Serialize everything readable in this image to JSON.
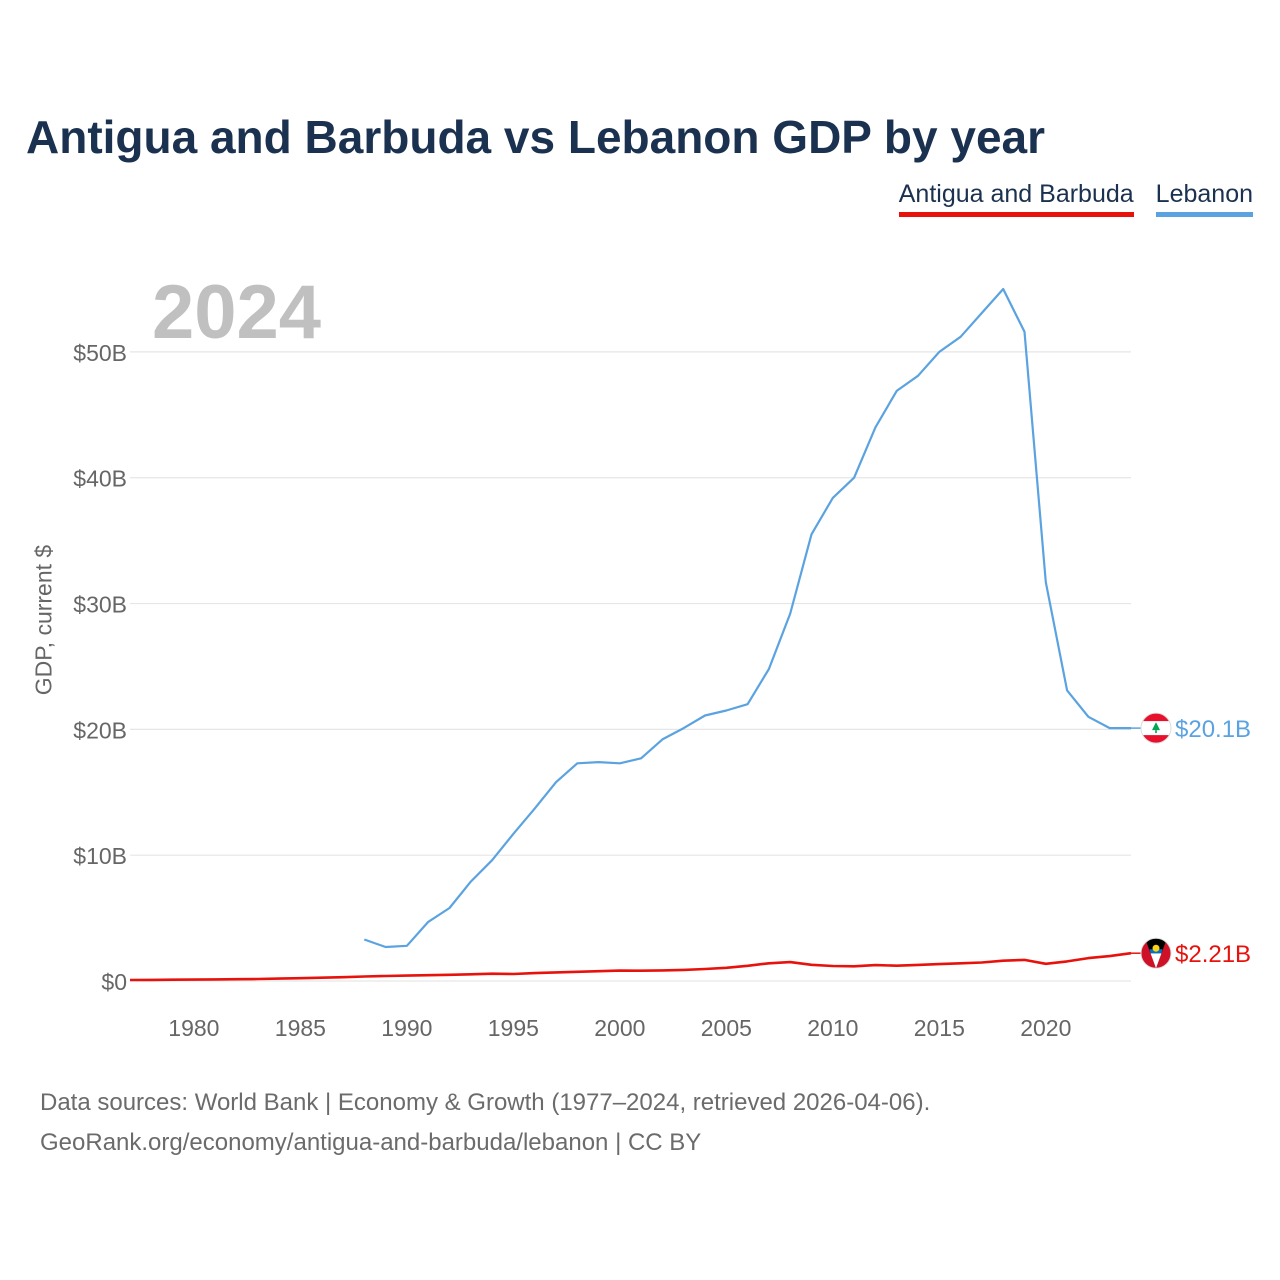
{
  "chart_data": {
    "type": "line",
    "title": "Antigua and Barbuda vs Lebanon GDP by year",
    "year_label": "2024",
    "ylabel": "GDP, current $",
    "xlim": [
      1977,
      2024
    ],
    "ylim": [
      0,
      55
    ],
    "y_unit": "billions USD",
    "yticks": [
      0,
      10,
      20,
      30,
      40,
      50
    ],
    "ytick_labels": [
      "$0",
      "$10B",
      "$20B",
      "$30B",
      "$40B",
      "$50B"
    ],
    "xticks": [
      1980,
      1985,
      1990,
      1995,
      2000,
      2005,
      2010,
      2015,
      2020
    ],
    "xtick_labels": [
      "1980",
      "1985",
      "1990",
      "1995",
      "2000",
      "2005",
      "2010",
      "2015",
      "2020"
    ],
    "grid": true,
    "legend_position": "top-right",
    "series": [
      {
        "name": "Antigua and Barbuda",
        "color": "#e8120c",
        "end_label": "$2.21B",
        "flag": "antigua-and-barbuda-flag",
        "x": [
          1977,
          1978,
          1979,
          1980,
          1981,
          1982,
          1983,
          1984,
          1985,
          1986,
          1987,
          1988,
          1989,
          1990,
          1991,
          1992,
          1993,
          1994,
          1995,
          1996,
          1997,
          1998,
          1999,
          2000,
          2001,
          2002,
          2003,
          2004,
          2005,
          2006,
          2007,
          2008,
          2009,
          2010,
          2011,
          2012,
          2013,
          2014,
          2015,
          2016,
          2017,
          2018,
          2019,
          2020,
          2021,
          2022,
          2023,
          2024
        ],
        "values": [
          0.08,
          0.09,
          0.1,
          0.11,
          0.13,
          0.14,
          0.16,
          0.19,
          0.22,
          0.26,
          0.3,
          0.36,
          0.4,
          0.43,
          0.46,
          0.49,
          0.53,
          0.58,
          0.56,
          0.63,
          0.68,
          0.73,
          0.78,
          0.83,
          0.82,
          0.84,
          0.88,
          0.95,
          1.05,
          1.21,
          1.41,
          1.5,
          1.29,
          1.19,
          1.17,
          1.26,
          1.22,
          1.28,
          1.34,
          1.41,
          1.47,
          1.61,
          1.68,
          1.37,
          1.56,
          1.82,
          1.98,
          2.21
        ]
      },
      {
        "name": "Lebanon",
        "color": "#5ba3e0",
        "end_label": "$20.1B",
        "flag": "lebanon-flag",
        "x": [
          1988,
          1989,
          1990,
          1991,
          1992,
          1993,
          1994,
          1995,
          1996,
          1997,
          1998,
          1999,
          2000,
          2001,
          2002,
          2003,
          2004,
          2005,
          2006,
          2007,
          2008,
          2009,
          2010,
          2011,
          2012,
          2013,
          2014,
          2015,
          2016,
          2017,
          2018,
          2019,
          2020,
          2021,
          2022,
          2023,
          2024
        ],
        "values": [
          3.3,
          2.7,
          2.8,
          4.7,
          5.8,
          7.9,
          9.6,
          11.7,
          13.7,
          15.8,
          17.3,
          17.4,
          17.3,
          17.7,
          19.2,
          20.1,
          21.1,
          21.5,
          22.0,
          24.8,
          29.2,
          35.5,
          38.4,
          40.0,
          44.0,
          46.9,
          48.1,
          50.0,
          51.2,
          53.1,
          55.0,
          51.6,
          31.7,
          23.1,
          21.0,
          20.1,
          20.1
        ]
      }
    ]
  },
  "footer": {
    "line1": "Data sources: World Bank | Economy & Growth (1977–2024, retrieved 2026-04-06).",
    "line2": "GeoRank.org/economy/antigua-and-barbuda/lebanon | CC BY"
  }
}
